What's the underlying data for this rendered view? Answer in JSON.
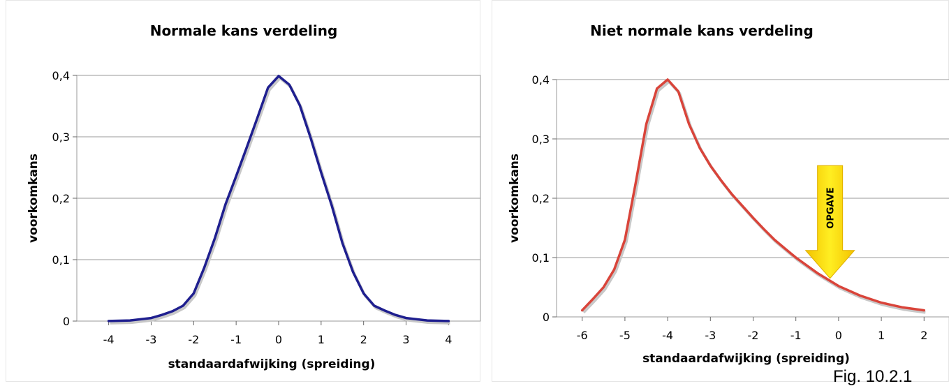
{
  "chart_data": [
    {
      "type": "line",
      "title": "Normale kans verdeling",
      "xlabel": "standaardafwijking (spreiding)",
      "ylabel": "voorkomkans",
      "xlim": [
        -4.75,
        4.75
      ],
      "ylim": [
        0,
        0.4
      ],
      "x_ticks": [
        -4,
        -3,
        -2,
        -1,
        0,
        1,
        2,
        3,
        4
      ],
      "y_ticks": [
        0,
        0.1,
        0.2,
        0.3,
        0.4
      ],
      "x_tick_labels": [
        "-4",
        "-3",
        "-2",
        "-1",
        "0",
        "1",
        "2",
        "3",
        "4"
      ],
      "y_tick_labels": [
        "0",
        "0,1",
        "0,2",
        "0,3",
        "0,4"
      ],
      "grid": true,
      "line_color": "#1f1f8f",
      "series": [
        {
          "x": [
            -4,
            -3.5,
            -3,
            -2.75,
            -2.5,
            -2.25,
            -2,
            -1.75,
            -1.5,
            -1.25,
            -1,
            -0.75,
            -0.5,
            -0.25,
            0,
            0.25,
            0.5,
            0.75,
            1,
            1.25,
            1.5,
            1.75,
            2,
            2.25,
            2.5,
            2.75,
            3,
            3.5,
            4
          ],
          "y": [
            0.0001,
            0.001,
            0.005,
            0.01,
            0.016,
            0.025,
            0.045,
            0.087,
            0.135,
            0.19,
            0.236,
            0.283,
            0.331,
            0.38,
            0.399,
            0.385,
            0.351,
            0.299,
            0.242,
            0.188,
            0.127,
            0.08,
            0.045,
            0.025,
            0.017,
            0.01,
            0.005,
            0.001,
            0.0001
          ]
        }
      ]
    },
    {
      "type": "line",
      "title": "Niet normale kans verdeling",
      "xlabel": "standaardafwijking (spreiding)",
      "ylabel": "voorkomkans",
      "xlim": [
        -6.6,
        2.6
      ],
      "ylim": [
        0,
        0.4
      ],
      "x_ticks": [
        -6,
        -5,
        -4,
        -3,
        -2,
        -1,
        0,
        1,
        2
      ],
      "y_ticks": [
        0,
        0.1,
        0.2,
        0.3,
        0.4
      ],
      "x_tick_labels": [
        "-6",
        "-5",
        "-4",
        "-3",
        "-2",
        "-1",
        "0",
        "1",
        "2"
      ],
      "y_tick_labels": [
        "0",
        "0,1",
        "0,2",
        "0,3",
        "0,4"
      ],
      "grid": true,
      "line_color": "#d9443a",
      "annotation": {
        "text": "OPGAVE",
        "x": -0.2,
        "y_top": 0.255,
        "y_tip": 0.065,
        "color": "#ffee22"
      },
      "series": [
        {
          "x": [
            -6,
            -5.75,
            -5.5,
            -5.25,
            -5,
            -4.75,
            -4.5,
            -4.25,
            -4,
            -3.75,
            -3.5,
            -3.25,
            -3,
            -2.75,
            -2.5,
            -2.25,
            -2,
            -1.75,
            -1.5,
            -1.25,
            -1,
            -0.5,
            0,
            0.5,
            1,
            1.5,
            2
          ],
          "y": [
            0.011,
            0.03,
            0.05,
            0.08,
            0.13,
            0.225,
            0.325,
            0.385,
            0.4,
            0.38,
            0.325,
            0.285,
            0.255,
            0.23,
            0.207,
            0.187,
            0.167,
            0.148,
            0.13,
            0.115,
            0.1,
            0.074,
            0.052,
            0.036,
            0.024,
            0.016,
            0.011
          ]
        }
      ]
    }
  ],
  "caption": "Fig. 10.2.1"
}
